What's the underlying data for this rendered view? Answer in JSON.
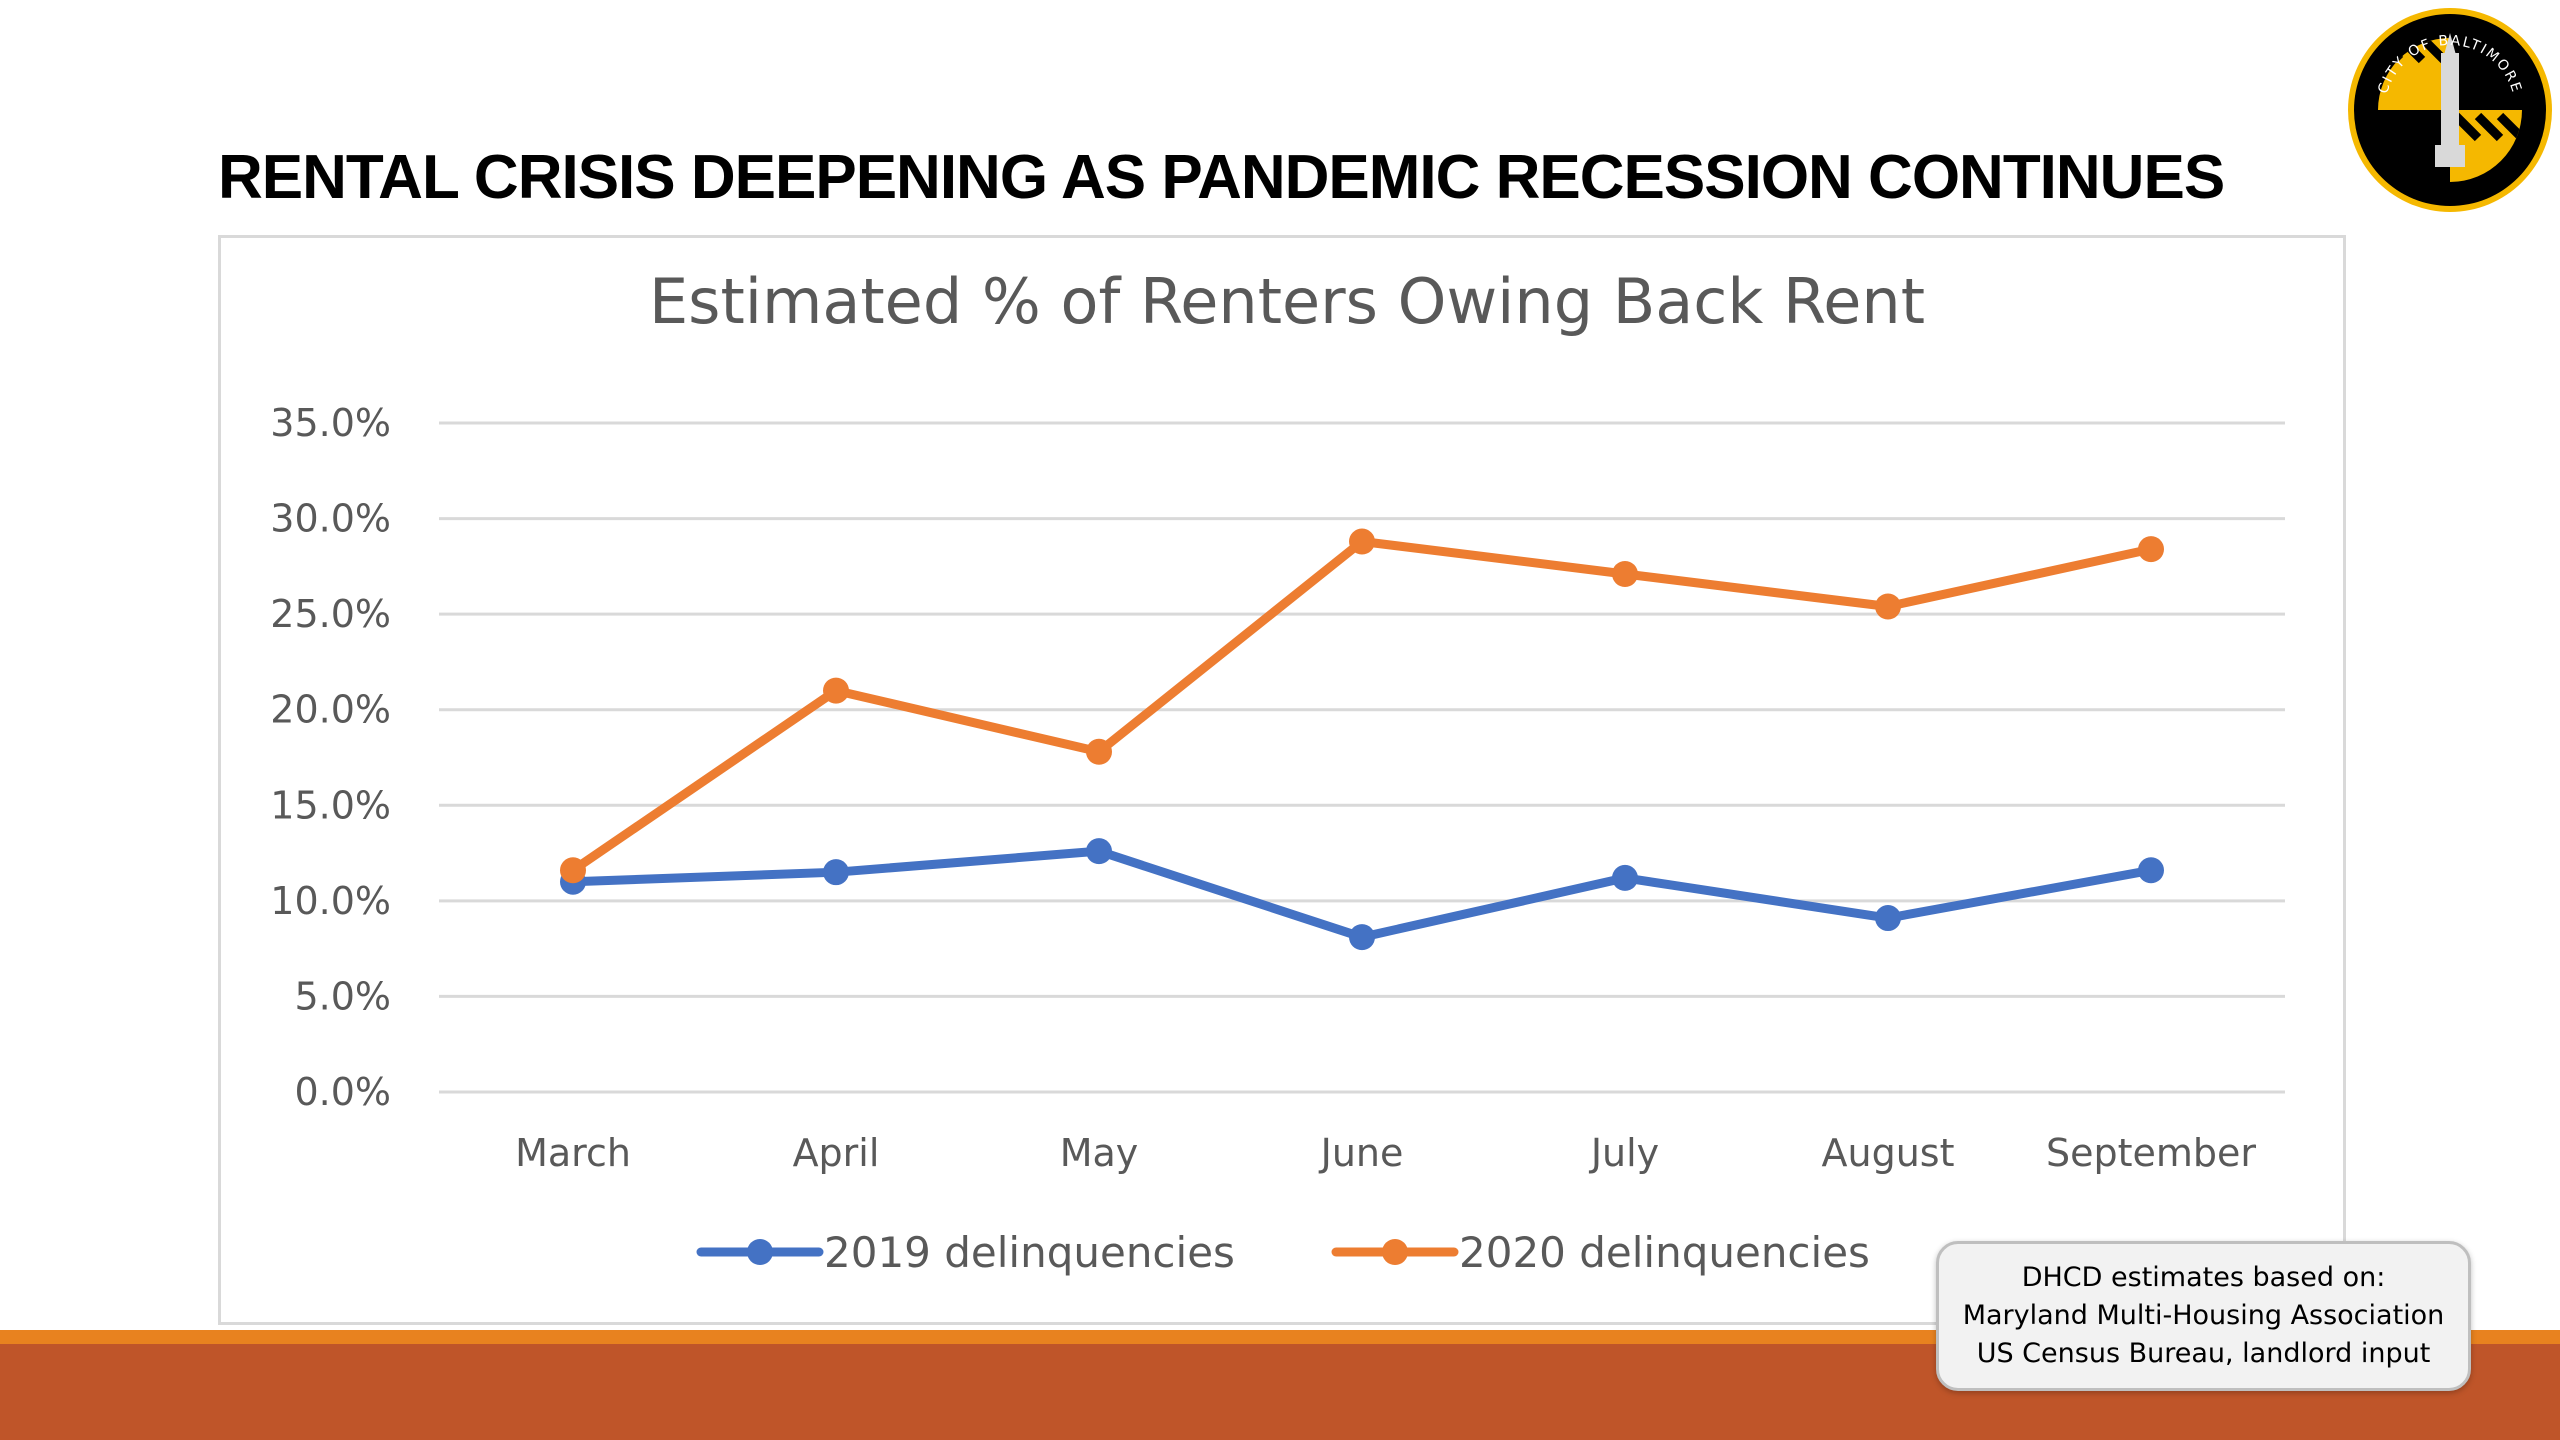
{
  "slide": {
    "title": "RENTAL CRISIS DEEPENING AS PANDEMIC RECESSION CONTINUES",
    "seal_text": "CITY OF BALTIMORE"
  },
  "colors": {
    "series_2019": "#4472c4",
    "series_2020": "#ed7d31",
    "footer_orange": "#e8821f",
    "footer_rust": "#bf5529",
    "seal_gold": "#f5b800",
    "seal_black": "#000000"
  },
  "chart_data": {
    "type": "line",
    "title": "Estimated % of Renters Owing Back Rent",
    "categories": [
      "March",
      "April",
      "May",
      "June",
      "July",
      "August",
      "September"
    ],
    "series": [
      {
        "name": "2019 delinquencies",
        "values": [
          11.0,
          11.5,
          12.6,
          8.1,
          11.2,
          9.1,
          11.6
        ]
      },
      {
        "name": "2020 delinquencies",
        "values": [
          11.6,
          21.0,
          17.8,
          28.8,
          27.1,
          25.4,
          28.4
        ]
      }
    ],
    "yticks": [
      "0.0%",
      "5.0%",
      "10.0%",
      "15.0%",
      "20.0%",
      "25.0%",
      "30.0%",
      "35.0%"
    ],
    "ylim": [
      0,
      35
    ],
    "ystep": 5,
    "grid": true,
    "legend_position": "bottom"
  },
  "source_note": {
    "lines": [
      "DHCD estimates based on:",
      "Maryland Multi-Housing Association",
      "US Census Bureau, landlord input"
    ]
  }
}
